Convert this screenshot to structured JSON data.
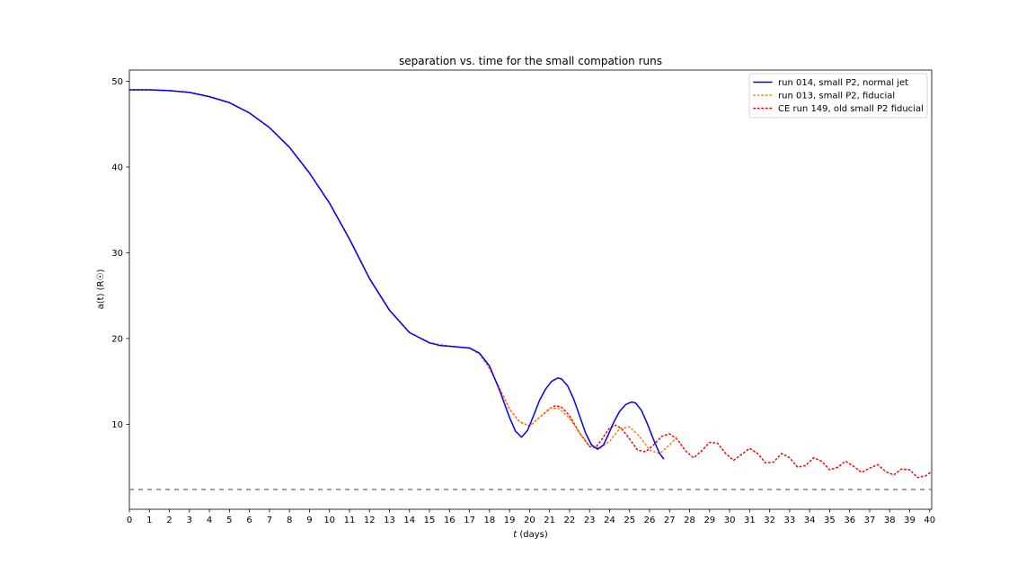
{
  "chart_data": {
    "type": "line",
    "title": "separation vs. time for the small compation runs",
    "xlabel_italic": "t",
    "xlabel_rest": " (days)",
    "ylabel": "a(t) (R☉)",
    "xlim": [
      0,
      40.1
    ],
    "ylim": [
      0.1,
      51.3
    ],
    "xticks": [
      0,
      1,
      2,
      3,
      4,
      5,
      6,
      7,
      8,
      9,
      10,
      11,
      12,
      13,
      14,
      15,
      16,
      17,
      18,
      19,
      20,
      21,
      22,
      23,
      24,
      25,
      26,
      27,
      28,
      29,
      30,
      31,
      32,
      33,
      34,
      35,
      36,
      37,
      38,
      39,
      40
    ],
    "yticks": [
      10,
      20,
      30,
      40,
      50
    ],
    "grid": false,
    "legend_position": "top-right",
    "reference_line": {
      "y": 2.4,
      "style": "dashed",
      "color": "#808080"
    },
    "series": [
      {
        "name": "run 014, small P2, normal jet",
        "color": "#0000ff",
        "style": "solid",
        "x": [
          0,
          1,
          2,
          3,
          4,
          5,
          6,
          7,
          8,
          9,
          10,
          11,
          12,
          13,
          14,
          15,
          15.5,
          16,
          16.5,
          17,
          17.5,
          18,
          18.5,
          19,
          19.3,
          19.6,
          19.9,
          20.2,
          20.5,
          20.8,
          21.1,
          21.4,
          21.6,
          21.9,
          22.2,
          22.5,
          22.8,
          23.1,
          23.4,
          23.7,
          23.9,
          24.2,
          24.5,
          24.8,
          25.1,
          25.3,
          25.6,
          25.9,
          26.2,
          26.5,
          26.7
        ],
        "y": [
          49,
          49,
          48.9,
          48.7,
          48.2,
          47.5,
          46.3,
          44.6,
          42.3,
          39.3,
          35.8,
          31.6,
          27.0,
          23.3,
          20.7,
          19.5,
          19.2,
          19.1,
          19.0,
          18.9,
          18.3,
          16.8,
          14.0,
          10.8,
          9.2,
          8.5,
          9.3,
          11.0,
          12.8,
          14.1,
          15.0,
          15.4,
          15.3,
          14.5,
          13.0,
          11.0,
          9.0,
          7.6,
          7.1,
          7.6,
          8.6,
          10.2,
          11.5,
          12.3,
          12.6,
          12.5,
          11.6,
          10.0,
          8.2,
          6.6,
          6.0
        ]
      },
      {
        "name": "run 013, small P2, fiducial",
        "color": "#ff7f0e",
        "style": "dotted",
        "x": [
          0,
          1,
          2,
          3,
          4,
          5,
          6,
          7,
          8,
          9,
          10,
          11,
          12,
          13,
          14,
          15,
          16,
          17,
          17.5,
          18,
          18.5,
          19,
          19.5,
          20,
          20.5,
          21,
          21.5,
          22,
          22.5,
          23,
          23.5,
          24,
          24.5,
          25,
          25.5,
          26,
          26.5,
          27,
          27.4
        ],
        "y": [
          49,
          49,
          48.9,
          48.7,
          48.2,
          47.5,
          46.3,
          44.6,
          42.3,
          39.3,
          35.8,
          31.6,
          27.0,
          23.3,
          20.7,
          19.5,
          19.1,
          18.9,
          18.2,
          16.5,
          14.2,
          11.8,
          10.3,
          9.8,
          10.8,
          11.9,
          11.8,
          10.7,
          9.0,
          7.5,
          7.2,
          8.0,
          9.5,
          9.7,
          8.6,
          7.0,
          6.6,
          7.6,
          8.6
        ]
      },
      {
        "name": "CE run 149, old small P2 fiducial",
        "color": "#ff0000",
        "style": "dotted",
        "x": [
          0,
          1,
          2,
          3,
          4,
          5,
          6,
          7,
          8,
          9,
          10,
          11,
          12,
          13,
          14,
          15,
          16,
          17,
          17.5,
          18,
          18.5,
          19,
          19.5,
          20,
          20.5,
          21,
          21.3,
          21.6,
          22,
          22.5,
          23,
          23.3,
          23.6,
          24,
          24.3,
          24.6,
          25,
          25.4,
          25.8,
          26.2,
          26.6,
          27,
          27.4,
          27.8,
          28.2,
          28.6,
          29,
          29.4,
          29.8,
          30.2,
          30.6,
          31,
          31.4,
          31.8,
          32.2,
          32.6,
          33,
          33.4,
          33.8,
          34.2,
          34.6,
          35,
          35.4,
          35.8,
          36.2,
          36.6,
          37,
          37.4,
          37.8,
          38.2,
          38.6,
          39,
          39.4,
          39.8,
          40.1
        ],
        "y": [
          49,
          49,
          48.9,
          48.7,
          48.2,
          47.5,
          46.3,
          44.6,
          42.3,
          39.3,
          35.8,
          31.6,
          27.0,
          23.3,
          20.7,
          19.5,
          19.1,
          18.9,
          18.2,
          16.5,
          14.2,
          11.8,
          10.3,
          9.8,
          10.8,
          11.8,
          12.2,
          12.0,
          11.0,
          9.0,
          7.4,
          7.3,
          8.2,
          9.6,
          9.9,
          9.5,
          8.3,
          7.0,
          6.8,
          7.6,
          8.6,
          8.9,
          8.2,
          6.9,
          6.1,
          6.9,
          7.9,
          7.8,
          6.6,
          5.8,
          6.5,
          7.2,
          6.6,
          5.5,
          5.6,
          6.6,
          6.1,
          5.0,
          5.2,
          6.1,
          5.7,
          4.7,
          5.0,
          5.7,
          5.1,
          4.4,
          4.9,
          5.3,
          4.5,
          4.1,
          4.8,
          4.7,
          3.8,
          4.0,
          4.5
        ]
      }
    ]
  }
}
